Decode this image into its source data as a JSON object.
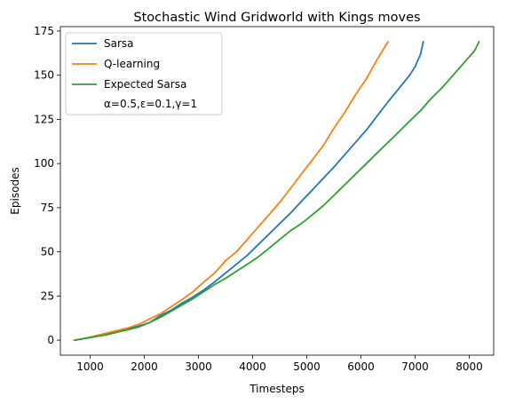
{
  "chart_data": {
    "type": "line",
    "title": "Stochastic Wind Gridworld with Kings moves",
    "xlabel": "Timesteps",
    "ylabel": "Episodes",
    "xlim": [
      450,
      8450
    ],
    "ylim": [
      -8.5,
      177.5
    ],
    "xticks": [
      1000,
      2000,
      3000,
      4000,
      5000,
      6000,
      7000,
      8000
    ],
    "yticks": [
      0,
      25,
      50,
      75,
      100,
      125,
      150,
      175
    ],
    "legend_position": "upper-left",
    "legend_note": "α=0.5,ε=0.1,γ=1",
    "series": [
      {
        "name": "Sarsa",
        "color": "#1f77b4",
        "x": [
          720,
          900,
          1100,
          1300,
          1500,
          1700,
          1900,
          2100,
          2300,
          2500,
          2700,
          2900,
          3100,
          3300,
          3500,
          3700,
          3900,
          4100,
          4300,
          4500,
          4700,
          4900,
          5100,
          5300,
          5500,
          5700,
          5900,
          6100,
          6300,
          6500,
          6700,
          6900,
          7000,
          7100,
          7150
        ],
        "y": [
          0,
          1,
          2,
          3.5,
          5,
          6.5,
          8,
          10,
          14,
          17,
          21,
          24.5,
          28.5,
          33,
          38,
          43,
          48,
          54,
          60,
          66,
          72,
          78.5,
          85,
          91.5,
          98,
          105,
          112,
          119,
          127,
          135,
          142.5,
          150,
          155,
          162,
          169
        ]
      },
      {
        "name": "Q-learning",
        "color": "#ff7f0e",
        "x": [
          700,
          900,
          1100,
          1300,
          1500,
          1700,
          1900,
          2100,
          2300,
          2500,
          2700,
          2900,
          3100,
          3300,
          3500,
          3700,
          3900,
          4100,
          4300,
          4500,
          4700,
          4900,
          5100,
          5300,
          5500,
          5700,
          5900,
          6100,
          6300,
          6500
        ],
        "y": [
          0,
          1,
          2.5,
          4,
          5.5,
          7,
          9,
          12,
          15,
          19,
          23,
          27.5,
          33,
          38,
          45,
          50,
          57,
          64,
          71,
          78,
          86,
          94,
          102,
          110,
          120,
          129,
          139,
          148,
          159,
          169
        ]
      },
      {
        "name": "Expected Sarsa",
        "color": "#2ca02c",
        "x": [
          720,
          900,
          1100,
          1300,
          1500,
          1700,
          1900,
          2100,
          2300,
          2500,
          2700,
          2900,
          3100,
          3300,
          3500,
          3700,
          3900,
          4100,
          4300,
          4500,
          4700,
          4900,
          5100,
          5300,
          5500,
          5700,
          5900,
          6100,
          6300,
          6500,
          6700,
          6900,
          7100,
          7300,
          7500,
          7700,
          7900,
          8100,
          8180
        ],
        "y": [
          0,
          1,
          2,
          3,
          4.5,
          6,
          7.5,
          10,
          13,
          16.5,
          20,
          23.5,
          27.5,
          31.5,
          35,
          39,
          43,
          47,
          52,
          57,
          62,
          66,
          71,
          76,
          82,
          88,
          94,
          100,
          106,
          112,
          118,
          124,
          130,
          137,
          143,
          150,
          157,
          164,
          169
        ]
      }
    ]
  }
}
